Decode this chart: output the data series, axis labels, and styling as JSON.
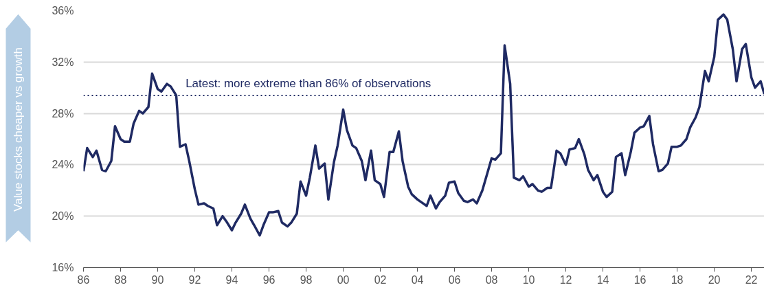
{
  "chart_data": {
    "type": "line",
    "ylabel": "Value stocks cheaper vs growth",
    "x": [
      1986.0,
      1986.2,
      1986.5,
      1986.7,
      1987.0,
      1987.2,
      1987.5,
      1987.7,
      1988.0,
      1988.2,
      1988.5,
      1988.7,
      1989.0,
      1989.2,
      1989.5,
      1989.7,
      1990.0,
      1990.2,
      1990.5,
      1990.7,
      1991.0,
      1991.2,
      1991.5,
      1991.7,
      1992.0,
      1992.2,
      1992.5,
      1992.7,
      1993.0,
      1993.2,
      1993.5,
      1993.7,
      1994.0,
      1994.2,
      1994.5,
      1994.7,
      1995.0,
      1995.2,
      1995.5,
      1995.7,
      1996.0,
      1996.2,
      1996.5,
      1996.7,
      1997.0,
      1997.2,
      1997.5,
      1997.7,
      1998.0,
      1998.2,
      1998.5,
      1998.7,
      1999.0,
      1999.2,
      1999.5,
      1999.7,
      2000.0,
      2000.2,
      2000.5,
      2000.7,
      2001.0,
      2001.2,
      2001.5,
      2001.7,
      2002.0,
      2002.2,
      2002.5,
      2002.7,
      2003.0,
      2003.2,
      2003.5,
      2003.7,
      2004.0,
      2004.2,
      2004.5,
      2004.7,
      2005.0,
      2005.2,
      2005.5,
      2005.7,
      2006.0,
      2006.2,
      2006.5,
      2006.7,
      2007.0,
      2007.2,
      2007.5,
      2007.7,
      2008.0,
      2008.2,
      2008.5,
      2008.7,
      2009.0,
      2009.2,
      2009.5,
      2009.7,
      2010.0,
      2010.2,
      2010.5,
      2010.7,
      2011.0,
      2011.2,
      2011.5,
      2011.7,
      2012.0,
      2012.2,
      2012.5,
      2012.7,
      2013.0,
      2013.2,
      2013.5,
      2013.7,
      2014.0,
      2014.2,
      2014.5,
      2014.7,
      2015.0,
      2015.2,
      2015.5,
      2015.7,
      2016.0,
      2016.2,
      2016.5,
      2016.7,
      2017.0,
      2017.2,
      2017.5,
      2017.7,
      2018.0,
      2018.2,
      2018.5,
      2018.7,
      2019.0,
      2019.2,
      2019.5,
      2019.7,
      2020.0,
      2020.2,
      2020.5,
      2020.7,
      2021.0,
      2021.2,
      2021.5,
      2021.7,
      2022.0,
      2022.2,
      2022.5,
      2022.7
    ],
    "series": [
      {
        "color": "#1f2a63",
        "values": [
          23.5,
          25.3,
          24.6,
          25.1,
          23.6,
          23.5,
          24.3,
          27.0,
          26.0,
          25.8,
          25.8,
          27.2,
          28.2,
          28.0,
          28.5,
          31.1,
          29.9,
          29.7,
          30.3,
          30.1,
          29.4,
          25.4,
          25.6,
          24.3,
          22.1,
          20.9,
          21.0,
          20.8,
          20.6,
          19.3,
          20.0,
          19.6,
          18.9,
          19.5,
          20.2,
          20.9,
          19.8,
          19.3,
          18.5,
          19.3,
          20.3,
          20.3,
          20.4,
          19.5,
          19.2,
          19.5,
          20.2,
          22.7,
          21.6,
          23.0,
          25.5,
          23.7,
          24.1,
          21.3,
          24.2,
          25.5,
          28.3,
          26.7,
          25.5,
          25.3,
          24.3,
          22.8,
          25.1,
          22.8,
          22.5,
          21.5,
          25.0,
          25.0,
          26.6,
          24.3,
          22.3,
          21.7,
          21.3,
          21.1,
          20.8,
          21.6,
          20.6,
          21.1,
          21.6,
          22.6,
          22.7,
          21.8,
          21.2,
          21.1,
          21.3,
          21.0,
          22.0,
          23.0,
          24.5,
          24.4,
          24.9,
          33.3,
          30.3,
          23.0,
          22.8,
          23.1,
          22.3,
          22.5,
          22.0,
          21.9,
          22.2,
          22.2,
          25.1,
          24.9,
          24.0,
          25.2,
          25.3,
          26.0,
          24.8,
          23.6,
          22.8,
          23.2,
          21.9,
          21.5,
          21.9,
          24.6,
          24.9,
          23.2,
          25.0,
          26.5,
          26.9,
          27.0,
          27.8,
          25.6,
          23.5,
          23.6,
          24.1,
          25.4,
          25.4,
          25.5,
          26.0,
          26.9,
          27.7,
          28.5,
          31.3,
          30.5,
          32.4,
          35.3,
          35.7,
          35.3,
          33.0,
          30.5,
          33.0,
          33.4,
          30.8,
          30.0,
          30.5,
          29.5
        ]
      }
    ],
    "xlim": [
      1986,
      2022.7
    ],
    "xticks": [
      {
        "value": 1986,
        "label": "86"
      },
      {
        "value": 1988,
        "label": "88"
      },
      {
        "value": 1990,
        "label": "90"
      },
      {
        "value": 1992,
        "label": "92"
      },
      {
        "value": 1994,
        "label": "94"
      },
      {
        "value": 1996,
        "label": "96"
      },
      {
        "value": 1998,
        "label": "98"
      },
      {
        "value": 2000,
        "label": "00"
      },
      {
        "value": 2002,
        "label": "02"
      },
      {
        "value": 2004,
        "label": "04"
      },
      {
        "value": 2006,
        "label": "06"
      },
      {
        "value": 2008,
        "label": "08"
      },
      {
        "value": 2010,
        "label": "10"
      },
      {
        "value": 2012,
        "label": "12"
      },
      {
        "value": 2014,
        "label": "14"
      },
      {
        "value": 2016,
        "label": "16"
      },
      {
        "value": 2018,
        "label": "18"
      },
      {
        "value": 2020,
        "label": "20"
      },
      {
        "value": 2022,
        "label": "22"
      }
    ],
    "ylim": [
      16,
      36
    ],
    "yticks": [
      {
        "value": 16,
        "label": "16%"
      },
      {
        "value": 20,
        "label": "20%"
      },
      {
        "value": 24,
        "label": "24%"
      },
      {
        "value": 28,
        "label": "28%"
      },
      {
        "value": 32,
        "label": "32%"
      },
      {
        "value": 36,
        "label": "36%"
      }
    ],
    "ref_lines": [
      {
        "axis": "y",
        "value": 29.4,
        "label": "Latest: more extreme than 86% of observations",
        "color": "#1f2a63",
        "line_style": "dotted"
      }
    ],
    "grid": "y",
    "marker": "none",
    "line_style": "solid"
  }
}
